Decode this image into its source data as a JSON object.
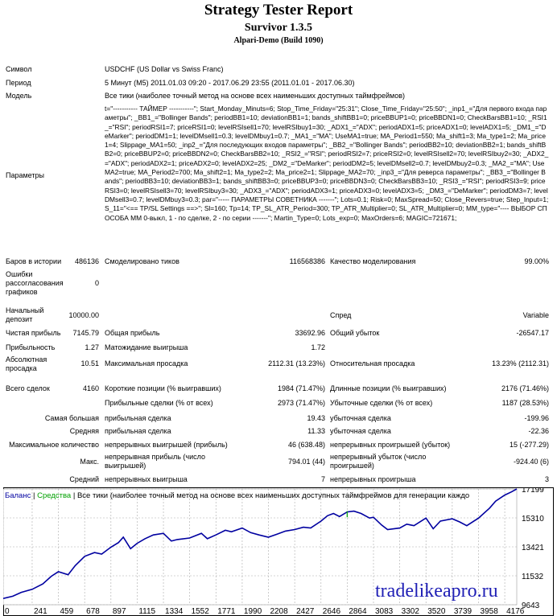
{
  "header": {
    "title": "Strategy Tester Report",
    "ea_name": "Survivor 1.3.5",
    "server": "Alpari-Demo (Build 1090)"
  },
  "info": {
    "symbol_label": "Символ",
    "symbol": "USDCHF (US Dollar vs Swiss Franc)",
    "period_label": "Период",
    "period": "5 Минут (M5) 2011.01.03 09:20 - 2017.06.29 23:55 (2011.01.01 - 2017.06.30)",
    "model_label": "Модель",
    "model": "Все тики (наиболее точный метод на основе всех наименьших доступных таймфреймов)",
    "params_label": "Параметры",
    "params": "t=\"----------- ТАЙМЕР -----------\"; Start_Monday_Minuts=6; Stop_Time_Friday=\"25:31\"; Close_Time_Friday=\"25:50\"; _inp1_=\"Для первого входа параметры\"; _BB1_=\"Bollinger Bands\"; periodBB1=10; deviationBB1=1; bands_shiftBB1=0; priceBBUP1=0; priceBBDN1=0; CheckBarsBB1=10; _RSI1_=\"RSI\"; periodRSI1=7; priceRSI1=0; levelRSIsell1=70; levelRSIbuy1=30; _ADX1_=\"ADX\"; periodADX1=5; priceADX1=0; levelADX1=5; _DM1_=\"DeMarker\"; periodDM1=1; levelDMsell1=0.3; levelDMbuy1=0.7; _MA1_=\"MA\"; UseMA1=true; MA_Period1=550; Ma_shift1=3; Ma_type1=2; Ma_price1=4; Slippage_MA1=50; _inp2_=\"Для последующих входов параметры\"; _BB2_=\"Bollinger Bands\"; periodBB2=10; deviationBB2=1; bands_shiftBB2=0; priceBBUP2=0; priceBBDN2=0; CheckBarsBB2=10; _RSI2_=\"RSI\"; periodRSI2=7; priceRSI2=0; levelRSIsell2=70; levelRSIbuy2=30; _ADX2_=\"ADX\"; periodADX2=1; priceADX2=0; levelADX2=25; _DM2_=\"DeMarker\"; periodDM2=5; levelDMsell2=0.7; levelDMbuy2=0.3; _MA2_=\"MA\"; UseMA2=true; MA_Period2=700; Ma_shift2=1; Ma_type2=2; Ma_price2=1; Slippage_MA2=70; _inp3_=\"Для реверса параметры\"; _BB3_=\"Bollinger Bands\"; periodBB3=10; deviationBB3=1; bands_shiftBB3=0; priceBBUP3=0; priceBBDN3=0; CheckBarsBB3=10; _RSI3_=\"RSI\"; periodRSI3=9; priceRSI3=0; levelRSIsell3=70; levelRSIbuy3=30; _ADX3_=\"ADX\"; periodADX3=1; priceADX3=0; levelADX3=5; _DM3_=\"DeMarker\"; periodDM3=7; levelDMsell3=0.7; levelDMbuy3=0.3; par=\"----- ПАРАМЕТРЫ СОВЕТНИКА -------\"; Lots=0.1; Risk=0; MaxSpread=50; Close_Revers=true; Step_Input=1; S_11=\"<== TP/SL Settings ==>\"; Sl=160; Tp=14; TP_SL_ATR_Period=300; TP_ATR_Multiplier=0; SL_ATR_Multiplier=0; MM_type=\"---- ВЫБОР СПОСОБА ММ 0-выкл, 1 - по сделке, 2 - по серии -------\"; Martin_Type=0; Lots_exp=0; MaxOrders=6; MAGIC=721671;"
  },
  "stats": {
    "bars_label": "Баров в истории",
    "bars": "486136",
    "ticks_label": "Смоделировано тиков",
    "ticks": "116568386",
    "quality_label": "Качество моделирования",
    "quality": "99.00%",
    "errors_label": "Ошибки рассогласования графиков",
    "errors": "0",
    "deposit_label": "Начальный депозит",
    "deposit": "10000.00",
    "spread_label": "Спред",
    "spread": "Variable",
    "net_label": "Чистая прибыль",
    "net": "7145.79",
    "gross_profit_label": "Общая прибыль",
    "gross_profit": "33692.96",
    "gross_loss_label": "Общий убыток",
    "gross_loss": "-26547.17",
    "pf_label": "Прибыльность",
    "pf": "1.27",
    "expected_label": "Матожидание выигрыша",
    "expected": "1.72",
    "abs_dd_label": "Абсолютная просадка",
    "abs_dd": "10.51",
    "max_dd_label": "Максимальная просадка",
    "max_dd": "2112.31 (13.23%)",
    "rel_dd_label": "Относительная просадка",
    "rel_dd": "13.23% (2112.31)",
    "total_label": "Всего сделок",
    "total": "4160",
    "short_label": "Короткие позиции (% выигравших)",
    "short": "1984 (71.47%)",
    "long_label": "Длинные позиции (% выигравших)",
    "long": "2176 (71.46%)",
    "profit_trades_label": "Прибыльные сделки (% от всех)",
    "profit_trades": "2973 (71.47%)",
    "loss_trades_label": "Убыточные сделки (% от всех)",
    "loss_trades": "1187 (28.53%)",
    "largest_label": "Самая большая",
    "avg_label": "Средняя",
    "max_count_label": "Максимальное количество",
    "max_label": "Макс.",
    "average_label": "Средний",
    "lp_label": "прибыльная сделка",
    "lp": "19.43",
    "ll_label": "убыточная сделка",
    "ll": "-199.96",
    "ap_label": "прибыльная сделка",
    "ap": "11.33",
    "al_label": "убыточная сделка",
    "al": "-22.36",
    "cw_label": "непрерывных выигрышей (прибыль)",
    "cw": "46 (638.48)",
    "cl_label": "непрерывных проигрышей (убыток)",
    "cl": "15 (-277.29)",
    "cp_label": "непрерывная прибыль (число выигрышей)",
    "cp": "794.01 (44)",
    "closs_label": "непрерывный убыток (число проигрышей)",
    "closs": "-924.40 (6)",
    "aw_label": "непрерывных выигрыша",
    "aw": "7",
    "alos_label": "непрерывных проигрыша",
    "alos": "3"
  },
  "chart_legend": {
    "balance": "Баланс",
    "equity": "Средства",
    "model": "Все тики (наиболее точный метод на основе всех наименьших доступных таймфреймов для генерации каждо"
  },
  "watermark": "tradelikeapro.ru",
  "colors": {
    "balance": "#0000a0",
    "equity": "#00a000",
    "watermark": "#1f1fb5"
  },
  "chart_data": {
    "type": "line",
    "x_ticks": [
      "0",
      "241",
      "459",
      "678",
      "897",
      "1115",
      "1334",
      "1552",
      "1771",
      "1990",
      "2208",
      "2427",
      "2646",
      "2864",
      "3083",
      "3302",
      "3520",
      "3739",
      "3958",
      "4176"
    ],
    "y_ticks": [
      "17199",
      "15310",
      "13421",
      "11532",
      "9643"
    ],
    "ylim": [
      9643,
      17199
    ],
    "xlim": [
      0,
      4276
    ],
    "grid": true,
    "series": [
      {
        "name": "Баланс",
        "x": [
          0,
          80,
          150,
          241,
          330,
          400,
          459,
          540,
          600,
          678,
          760,
          820,
          897,
          960,
          1000,
          1060,
          1115,
          1180,
          1250,
          1334,
          1400,
          1450,
          1552,
          1650,
          1700,
          1771,
          1850,
          1900,
          1990,
          2060,
          2130,
          2208,
          2280,
          2350,
          2427,
          2500,
          2560,
          2646,
          2700,
          2750,
          2800,
          2864,
          2920,
          2980,
          3050,
          3083,
          3150,
          3200,
          3302,
          3360,
          3420,
          3520,
          3580,
          3640,
          3739,
          3800,
          3860,
          3958,
          4050,
          4100,
          4176,
          4230,
          4276
        ],
        "y": [
          10050,
          10200,
          10450,
          10650,
          11000,
          11500,
          11800,
          11600,
          12200,
          12800,
          13050,
          12950,
          13400,
          13700,
          14050,
          13300,
          13650,
          13950,
          14200,
          14300,
          13800,
          13900,
          14000,
          14300,
          13950,
          14200,
          14500,
          14400,
          14650,
          14350,
          14200,
          14050,
          14250,
          14450,
          14550,
          14700,
          14650,
          15100,
          15450,
          15600,
          15400,
          15700,
          15750,
          15600,
          15300,
          15350,
          14850,
          14550,
          14650,
          14900,
          14800,
          15300,
          14600,
          15100,
          15250,
          15050,
          14800,
          15300,
          15950,
          16400,
          16800,
          17000,
          17199
        ]
      }
    ]
  }
}
